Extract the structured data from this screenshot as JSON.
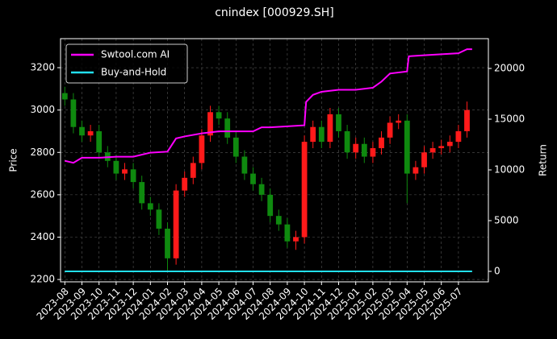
{
  "chart_data": {
    "type": "candlestick",
    "title": "cnindex [000929.SH]",
    "ylabel": "Price",
    "y2label": "Return",
    "xlim": [
      -0.25,
      24.75
    ],
    "xticks": [
      {
        "value": 0,
        "label": "2023-08"
      },
      {
        "value": 1,
        "label": "2023-09"
      },
      {
        "value": 2,
        "label": "2023-10"
      },
      {
        "value": 3,
        "label": "2023-11"
      },
      {
        "value": 4,
        "label": "2023-12"
      },
      {
        "value": 5,
        "label": "2024-01"
      },
      {
        "value": 6,
        "label": "2024-02"
      },
      {
        "value": 7,
        "label": "2024-03"
      },
      {
        "value": 8,
        "label": "2024-04"
      },
      {
        "value": 9,
        "label": "2024-05"
      },
      {
        "value": 10,
        "label": "2024-06"
      },
      {
        "value": 11,
        "label": "2024-07"
      },
      {
        "value": 12,
        "label": "2024-08"
      },
      {
        "value": 13,
        "label": "2024-09"
      },
      {
        "value": 14,
        "label": "2024-10"
      },
      {
        "value": 15,
        "label": "2024-11"
      },
      {
        "value": 16,
        "label": "2024-12"
      },
      {
        "value": 17,
        "label": "2025-01"
      },
      {
        "value": 18,
        "label": "2025-02"
      },
      {
        "value": 19,
        "label": "2025-03"
      },
      {
        "value": 20,
        "label": "2025-04"
      },
      {
        "value": 21,
        "label": "2025-05"
      },
      {
        "value": 22,
        "label": "2025-06"
      },
      {
        "value": 23,
        "label": "2025-07"
      }
    ],
    "ylim": [
      2189,
      3337
    ],
    "yticks": [
      2200,
      2400,
      2600,
      2800,
      3000,
      3200
    ],
    "y2lim": [
      -1032,
      22937
    ],
    "y2ticks": [
      0,
      5000,
      10000,
      15000,
      20000
    ],
    "grid": true,
    "legend": "upper left",
    "up_color": "#ff1a1a",
    "down_color": "#0f8a0f",
    "candles": {
      "x": [
        0,
        0.5,
        1,
        1.5,
        2,
        2.5,
        3,
        3.5,
        4,
        4.5,
        5,
        5.5,
        6,
        6.5,
        7,
        7.5,
        8,
        8.5,
        9,
        9.5,
        10,
        10.5,
        11,
        11.5,
        12,
        12.5,
        13,
        13.5,
        14,
        14.5,
        15,
        15.5,
        16,
        16.5,
        17,
        17.5,
        18,
        18.5,
        19,
        19.5,
        20,
        20.5,
        21,
        21.5,
        22,
        22.5,
        23,
        23.5
      ],
      "open": [
        3080,
        3050,
        2920,
        2880,
        2900,
        2800,
        2760,
        2700,
        2720,
        2660,
        2560,
        2530,
        2440,
        2300,
        2620,
        2680,
        2750,
        2880,
        2990,
        2960,
        2870,
        2780,
        2700,
        2650,
        2600,
        2500,
        2460,
        2380,
        2400,
        2850,
        2920,
        2850,
        2980,
        2900,
        2800,
        2840,
        2780,
        2820,
        2870,
        2940,
        2950,
        2700,
        2730,
        2800,
        2820,
        2830,
        2850,
        2900
      ],
      "high": [
        3110,
        3080,
        2950,
        2930,
        2930,
        2830,
        2790,
        2750,
        2750,
        2690,
        2590,
        2560,
        2470,
        2650,
        2710,
        2780,
        2910,
        3020,
        3020,
        2990,
        2900,
        2810,
        2730,
        2680,
        2630,
        2530,
        2490,
        2430,
        2880,
        2950,
        2950,
        3010,
        3010,
        2930,
        2870,
        2870,
        2850,
        2900,
        2970,
        2980,
        2980,
        2760,
        2830,
        2850,
        2860,
        2880,
        2930,
        3040
      ],
      "low": [
        3020,
        2890,
        2850,
        2850,
        2770,
        2730,
        2670,
        2670,
        2630,
        2530,
        2500,
        2410,
        2240,
        2270,
        2590,
        2650,
        2720,
        2850,
        2930,
        2840,
        2750,
        2670,
        2620,
        2570,
        2470,
        2430,
        2350,
        2340,
        2370,
        2820,
        2820,
        2820,
        2870,
        2770,
        2770,
        2750,
        2750,
        2790,
        2840,
        2910,
        2560,
        2670,
        2700,
        2770,
        2790,
        2800,
        2820,
        2870
      ],
      "close": [
        3050,
        2920,
        2880,
        2900,
        2800,
        2760,
        2700,
        2720,
        2660,
        2560,
        2530,
        2440,
        2300,
        2620,
        2680,
        2750,
        2880,
        2990,
        2960,
        2870,
        2780,
        2700,
        2650,
        2600,
        2500,
        2460,
        2380,
        2400,
        2850,
        2920,
        2850,
        2980,
        2900,
        2800,
        2840,
        2780,
        2820,
        2870,
        2940,
        2950,
        2700,
        2730,
        2800,
        2820,
        2830,
        2850,
        2900,
        3000
      ]
    },
    "series": [
      {
        "name": "Swtool.com AI",
        "color": "#ff00ff",
        "axis": "y2",
        "x": [
          0,
          0.5,
          1,
          2,
          3,
          4,
          5,
          6,
          6.5,
          7,
          8,
          9,
          10,
          11,
          11.5,
          12,
          13,
          14,
          14.1,
          14.5,
          15,
          16,
          17,
          18,
          18.5,
          19,
          20,
          20.1,
          21,
          22,
          23,
          23.5,
          23.8
        ],
        "values": [
          10900,
          10700,
          11200,
          11200,
          11300,
          11300,
          11700,
          11800,
          13100,
          13300,
          13600,
          13800,
          13800,
          13800,
          14200,
          14200,
          14300,
          14400,
          16700,
          17400,
          17700,
          17900,
          17900,
          18100,
          18700,
          19500,
          19700,
          21200,
          21300,
          21400,
          21500,
          21900,
          21900
        ]
      },
      {
        "name": "Buy-and-Hold",
        "color": "#22e0f0",
        "axis": "y2",
        "x": [
          0,
          23.8
        ],
        "values": [
          0,
          0
        ]
      }
    ]
  }
}
